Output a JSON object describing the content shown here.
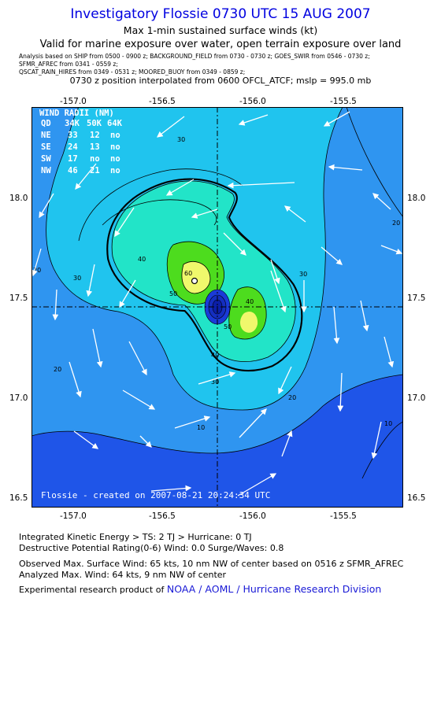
{
  "header": {
    "title": "Investigatory Flossie 0730 UTC 15 AUG 2007",
    "subtitle1": "Max 1-min sustained surface winds (kt)",
    "subtitle2": "Valid for marine exposure over water, open terrain exposure over land",
    "analysis_line1": "Analysis based on  SHIP from 0500 - 0900 z;  BACKGROUND_FIELD from 0730 - 0730 z;  GOES_SWIR from 0546 - 0730 z;",
    "analysis_line2": "SFMR_AFREC from 0341 - 0559 z;",
    "analysis_line3": "QSCAT_RAIN_HIRES from 0349 - 0531 z;   MOORED_BUOY from 0349 - 0859 z;",
    "position_line": "0730 z position interpolated from 0600 OFCL_ATCF; mslp = 995.0 mb"
  },
  "map": {
    "lon_ticks": [
      "-157.0",
      "-156.5",
      "-156.0",
      "-155.5"
    ],
    "lat_ticks": [
      "18.0",
      "17.5",
      "17.0",
      "16.5"
    ],
    "lon_range": [
      -157.13,
      -155.27
    ],
    "lat_range": [
      16.45,
      18.45
    ],
    "center": {
      "lon": -156.2,
      "lat": 17.45
    },
    "wind_radii": {
      "title": "WIND RADII (NM)",
      "header": [
        "QD",
        "34K",
        "50K",
        "64K"
      ],
      "rows": [
        [
          "NE",
          "33",
          "12",
          "no"
        ],
        [
          "SE",
          "24",
          "13",
          "no"
        ],
        [
          "SW",
          "17",
          "no",
          "no"
        ],
        [
          "NW",
          "46",
          "21",
          "no"
        ]
      ]
    },
    "contour_labels": [
      "30",
      "40",
      "50",
      "60",
      "50",
      "40",
      "30",
      "20",
      "20",
      "30",
      "20",
      "10",
      "20",
      "10",
      "30",
      "40"
    ],
    "credit": "Flossie - created on 2007-08-21 20:24:34 UTC"
  },
  "footer": {
    "ike": "Integrated Kinetic Energy > TS: 2 TJ   > Hurricane: 0 TJ",
    "dpr": "Destructive Potential Rating(0-6)   Wind: 0.0 Surge/Waves: 0.8",
    "obs": "Observed Max. Surface Wind: 65 kts, 10 nm NW of center based on 0516 z SFMR_AFREC",
    "analyzed": "Analyzed Max. Wind: 64 kts, 9 nm NW of center",
    "product_prefix": "Experimental research product of ",
    "product_link": "NOAA / AOML / Hurricane Research Division"
  },
  "colors": {
    "title": "#0000e0",
    "c10": "#1f55e8",
    "c20": "#2f95f0",
    "c30": "#20c4ee",
    "c40": "#22e4c8",
    "c50": "#4ddc1e",
    "c60": "#f0f86c",
    "eye": "#0b1ea8"
  }
}
